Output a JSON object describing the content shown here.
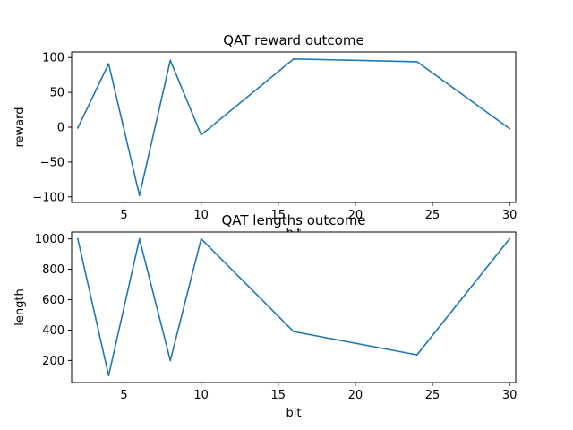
{
  "chart_data": [
    {
      "type": "line",
      "title": "QAT reward outcome",
      "xlabel": "bit",
      "ylabel": "reward",
      "xlim": [
        1.6,
        30.4
      ],
      "ylim": [
        -108,
        108
      ],
      "xticks": [
        5,
        10,
        15,
        20,
        25,
        30
      ],
      "xtick_labels": [
        "5",
        "10",
        "15",
        "20",
        "25",
        "30"
      ],
      "yticks": [
        -100,
        -50,
        0,
        50,
        100
      ],
      "ytick_labels": [
        "−100",
        "−50",
        "0",
        "50",
        "100"
      ],
      "grid": false,
      "series": [
        {
          "color": "#1f77b4",
          "x": [
            2,
            4,
            6,
            8,
            10,
            16,
            24,
            30
          ],
          "y": [
            -1,
            91,
            -98,
            96,
            -11,
            98,
            94,
            -2
          ]
        }
      ]
    },
    {
      "type": "line",
      "title": "QAT lengths outcome",
      "xlabel": "bit",
      "ylabel": "length",
      "xlim": [
        1.6,
        30.4
      ],
      "ylim": [
        55,
        1045
      ],
      "xticks": [
        5,
        10,
        15,
        20,
        25,
        30
      ],
      "xtick_labels": [
        "5",
        "10",
        "15",
        "20",
        "25",
        "30"
      ],
      "yticks": [
        200,
        400,
        600,
        800,
        1000
      ],
      "ytick_labels": [
        "200",
        "400",
        "600",
        "800",
        "1000"
      ],
      "grid": false,
      "series": [
        {
          "color": "#1f77b4",
          "x": [
            2,
            4,
            6,
            8,
            10,
            16,
            24,
            30
          ],
          "y": [
            1000,
            100,
            1000,
            200,
            1000,
            390,
            237,
            1000
          ]
        }
      ]
    }
  ]
}
